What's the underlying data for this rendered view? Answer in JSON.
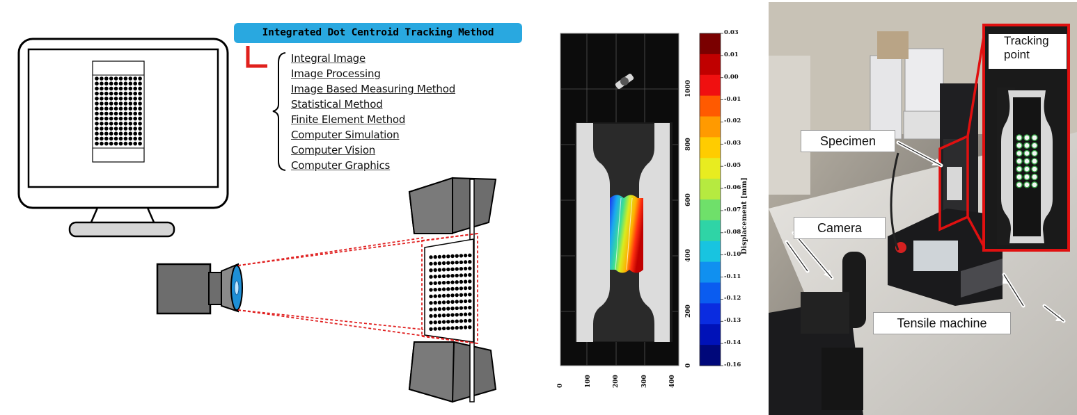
{
  "title": "Integrated Dot Centroid Tracking Method",
  "methods": [
    "Integral Image",
    "Image Processing",
    "Image Based Measuring Method",
    "Statistical Method",
    "Finite Element Method",
    "Computer Simulation",
    "Computer Vision",
    "Computer Graphics"
  ],
  "colorbar": {
    "title": "Displacement [mm]",
    "ticks": [
      "0.03",
      "0.01",
      "0.00",
      "-0.01",
      "-0.02",
      "-0.03",
      "-0.05",
      "-0.06",
      "-0.07",
      "-0.08",
      "-0.10",
      "-0.11",
      "-0.12",
      "-0.13",
      "-0.14",
      "-0.16"
    ],
    "colors": [
      "#7a0000",
      "#c00000",
      "#f01010",
      "#ff5a00",
      "#ff9a00",
      "#ffcc00",
      "#e8ec20",
      "#b6ea40",
      "#6fe06a",
      "#2fd4a6",
      "#18c4e0",
      "#1090f0",
      "#0a5cf0",
      "#0a2ce0",
      "#0012b8",
      "#00087a"
    ]
  },
  "plot_axis": {
    "x_ticks": [
      "0",
      "100",
      "200",
      "300",
      "400"
    ],
    "y_ticks": [
      "0",
      "200",
      "400",
      "600",
      "800",
      "1000"
    ]
  },
  "photo_labels": {
    "specimen": "Specimen",
    "camera": "Camera",
    "tensile": "Tensile machine",
    "tracking": "Tracking point"
  },
  "colors": {
    "accent_blue": "#29a8e0",
    "bracket_red": "#e0201c",
    "frame_red": "#e01010"
  }
}
